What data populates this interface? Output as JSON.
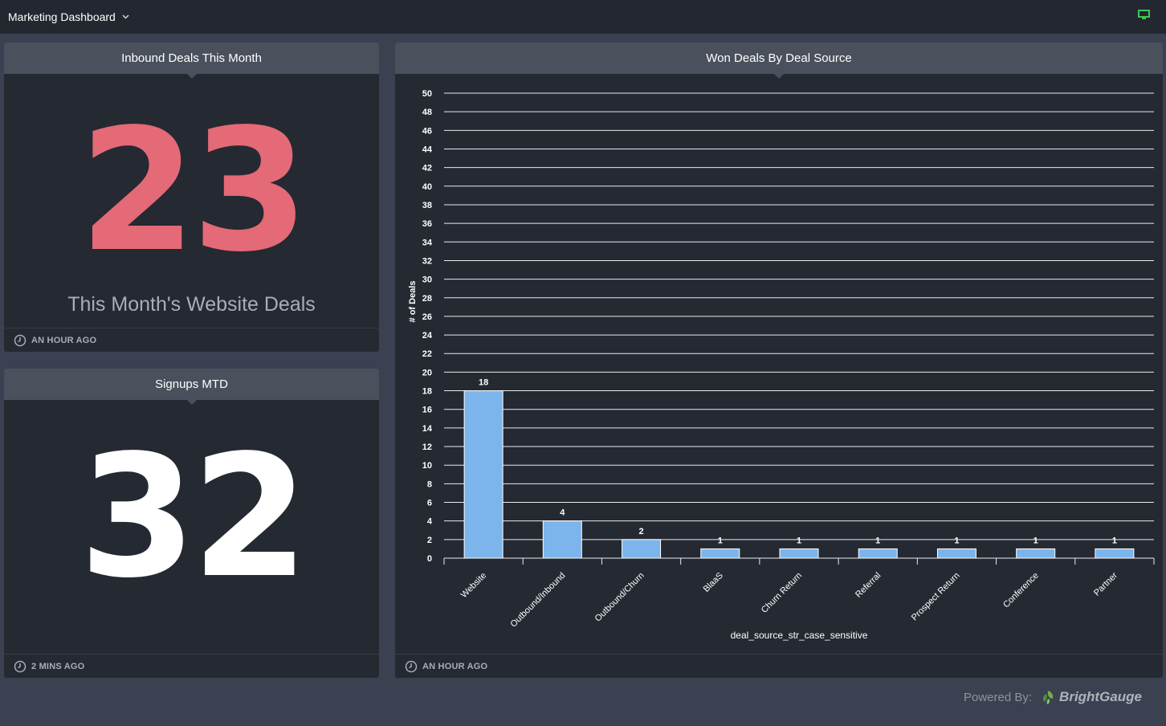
{
  "topbar": {
    "dashboard_title": "Marketing Dashboard",
    "chevron_icon": "chevron-down-icon",
    "monitor_icon": "monitor-icon",
    "monitor_color": "#3fc75a"
  },
  "panels": {
    "inbound": {
      "title": "Inbound Deals This Month",
      "value": "23",
      "caption": "This Month's Website Deals",
      "updated": "AN HOUR AGO",
      "value_color": "#e36a76"
    },
    "signups": {
      "title": "Signups MTD",
      "value": "32",
      "updated": "2 MINS AGO",
      "value_color": "#ffffff"
    },
    "won_deals": {
      "title": "Won Deals By Deal Source",
      "updated": "AN HOUR AGO"
    }
  },
  "chart_data": {
    "type": "bar",
    "title": "Won Deals By Deal Source",
    "xlabel": "deal_source_str_case_sensitive",
    "ylabel": "# of Deals",
    "ylim": [
      0,
      50
    ],
    "ytick_step": 2,
    "grid": true,
    "categories": [
      "Website",
      "Outbound/Inbound",
      "Outbound/Churn",
      "BlaaS",
      "Churn Return",
      "Referral",
      "Prospect Return",
      "Conference",
      "Partner"
    ],
    "values": [
      18,
      4,
      2,
      1,
      1,
      1,
      1,
      1,
      1
    ],
    "bar_color": "#7cb5ec"
  },
  "footer": {
    "powered_by": "Powered By:",
    "brand": "BrightGauge",
    "brand_icon": "brightgauge-leaf-icon"
  }
}
